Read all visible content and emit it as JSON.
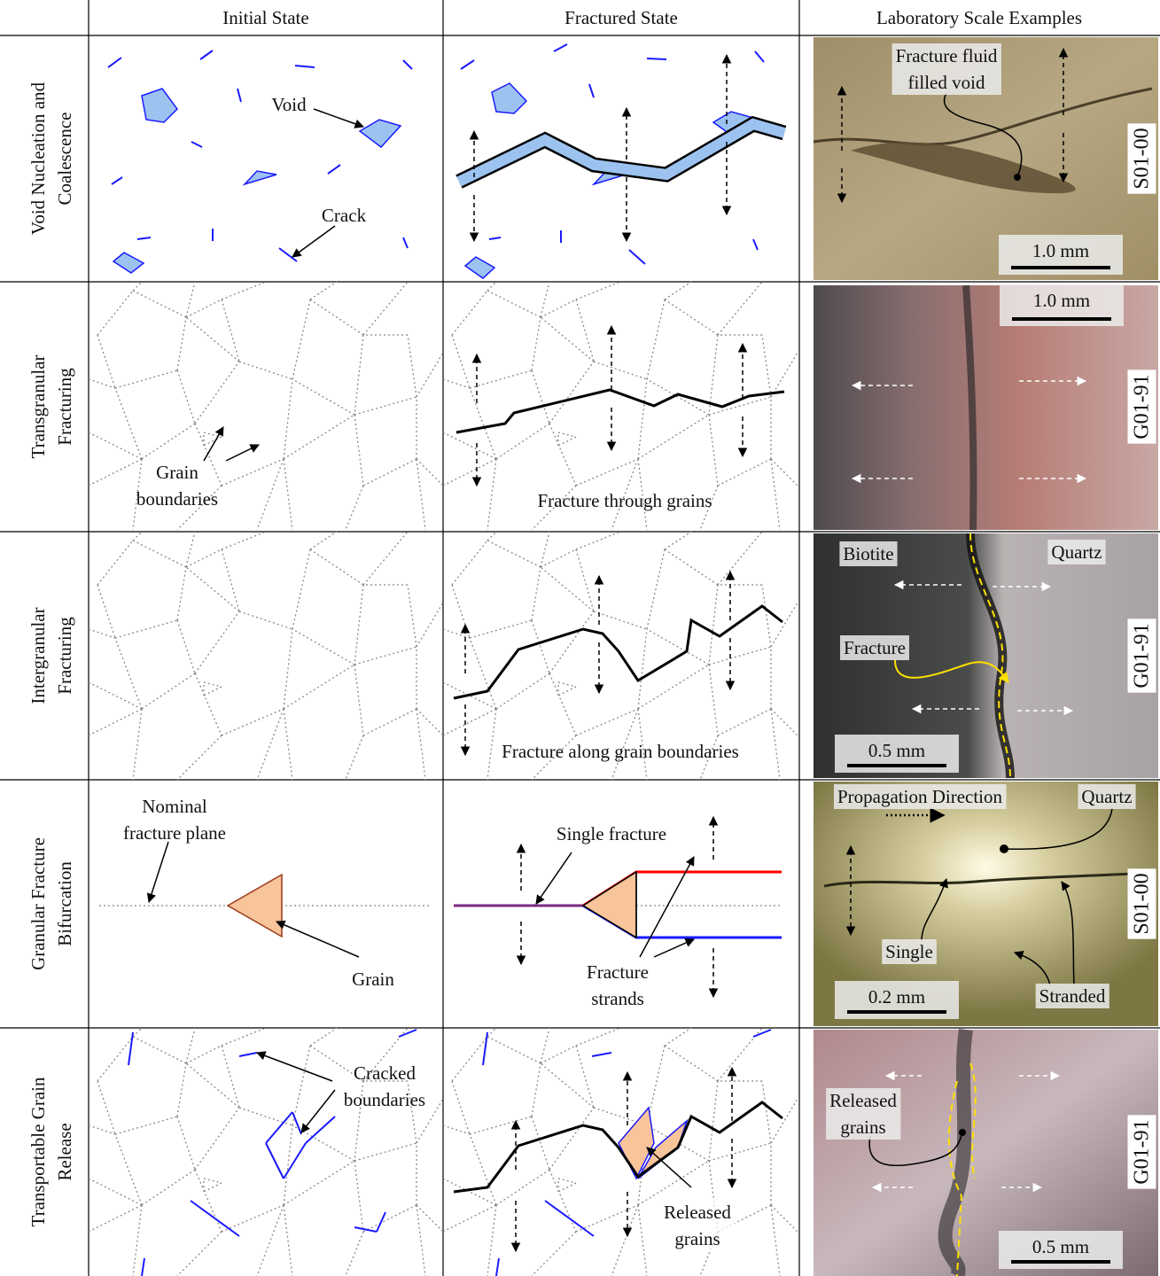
{
  "header": [
    "Initial State",
    "Fractured State",
    "Laboratory Scale Examples"
  ],
  "rows": [
    {
      "label": [
        "Void Nucleation and",
        "Coalescence"
      ],
      "notes": [
        "Void",
        "Crack"
      ],
      "photo_notes": [
        [
          "Fracture fluid",
          "filled void"
        ]
      ],
      "scale": "1.0 mm",
      "sample": "S01-00"
    },
    {
      "label": [
        "Transgranular",
        "Fracturing"
      ],
      "notes": [
        [
          "Grain",
          "boundaries"
        ],
        "Fracture through grains"
      ],
      "scale": "1.0 mm",
      "sample": "G01-91"
    },
    {
      "label": [
        "Intergranular",
        "Fracturing"
      ],
      "notes": [
        "Fracture along grain boundaries"
      ],
      "photo_notes": [
        "Biotite",
        "Quartz",
        "Fracture"
      ],
      "scale": "0.5 mm",
      "sample": "G01-91"
    },
    {
      "label": [
        "Granular Fracture",
        "Bifurcation"
      ],
      "notes": [
        [
          "Nominal",
          "fracture plane"
        ],
        "Grain",
        "Single fracture",
        [
          "Fracture",
          "strands"
        ]
      ],
      "photo_notes": [
        "Propagation Direction",
        "Quartz",
        "Single",
        "Stranded"
      ],
      "scale": "0.2 mm",
      "sample": "S01-00"
    },
    {
      "label": [
        "Transportable Grain",
        "Release"
      ],
      "notes": [
        [
          "Cracked",
          "boundaries"
        ],
        [
          "Released",
          "grains"
        ]
      ],
      "photo_notes": [
        [
          "Released",
          "grains"
        ]
      ],
      "scale": "0.5 mm",
      "sample": "G01-91"
    }
  ]
}
